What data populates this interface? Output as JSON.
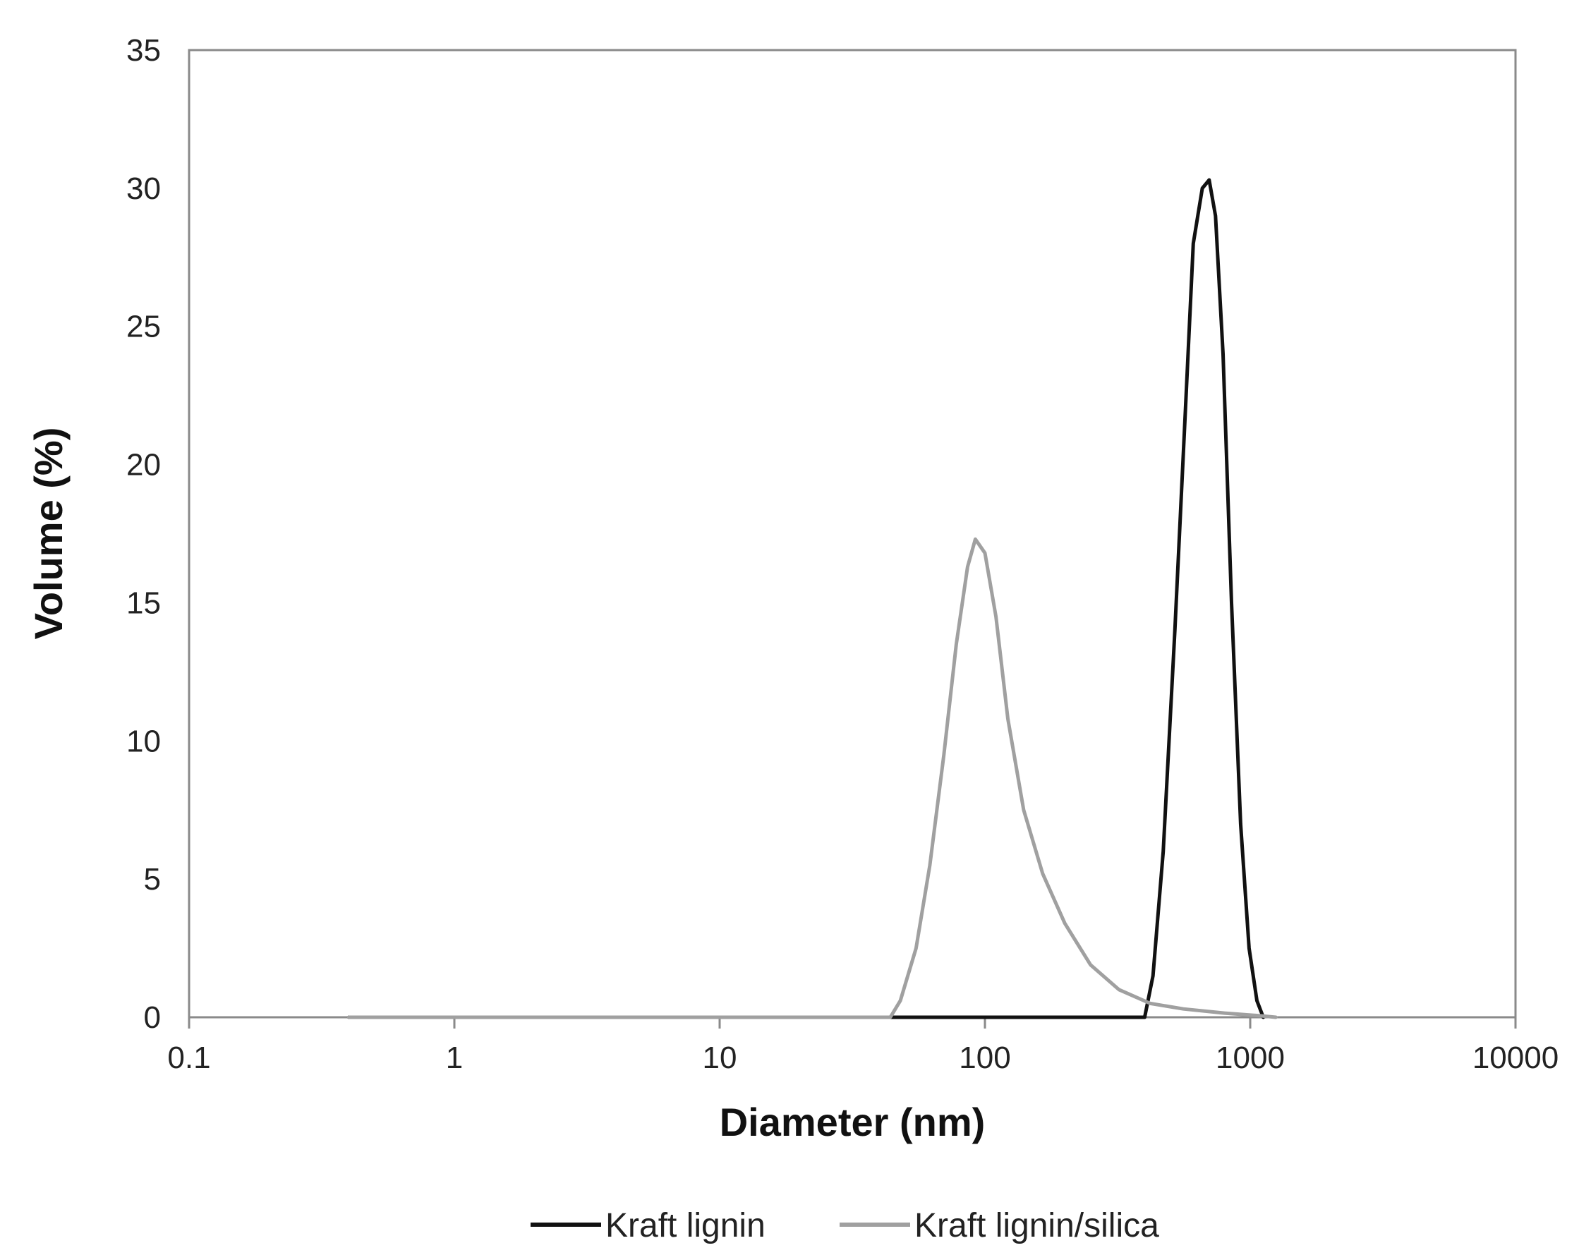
{
  "chart_data": {
    "type": "line",
    "xlabel": "Diameter (nm)",
    "ylabel": "Volume (%)",
    "x_scale": "log",
    "xlim": [
      0.1,
      10000
    ],
    "ylim": [
      0,
      35
    ],
    "x_ticks": [
      "0.1",
      "1",
      "10",
      "100",
      "1000",
      "10000"
    ],
    "y_ticks": [
      "0",
      "5",
      "10",
      "15",
      "20",
      "25",
      "30",
      "35"
    ],
    "grid": false,
    "legend_position": "bottom-center",
    "series": [
      {
        "name": "Kraft lignin",
        "color": "#111111",
        "points": [
          [
            0.4,
            0
          ],
          [
            10,
            0
          ],
          [
            100,
            0
          ],
          [
            360,
            0
          ],
          [
            400,
            0
          ],
          [
            430,
            1.5
          ],
          [
            470,
            6
          ],
          [
            520,
            14
          ],
          [
            570,
            22
          ],
          [
            610,
            28
          ],
          [
            660,
            30
          ],
          [
            700,
            30.3
          ],
          [
            740,
            29
          ],
          [
            790,
            24
          ],
          [
            850,
            15
          ],
          [
            920,
            7
          ],
          [
            990,
            2.5
          ],
          [
            1060,
            0.6
          ],
          [
            1120,
            0
          ]
        ]
      },
      {
        "name": "Kraft lignin/silica",
        "color": "#a0a0a0",
        "points": [
          [
            0.4,
            0
          ],
          [
            10,
            0
          ],
          [
            44,
            0
          ],
          [
            48,
            0.6
          ],
          [
            55,
            2.5
          ],
          [
            62,
            5.5
          ],
          [
            70,
            9.5
          ],
          [
            78,
            13.5
          ],
          [
            86,
            16.3
          ],
          [
            92,
            17.3
          ],
          [
            100,
            16.8
          ],
          [
            110,
            14.5
          ],
          [
            122,
            10.8
          ],
          [
            140,
            7.5
          ],
          [
            165,
            5.2
          ],
          [
            200,
            3.4
          ],
          [
            250,
            1.9
          ],
          [
            320,
            1.0
          ],
          [
            420,
            0.5
          ],
          [
            560,
            0.3
          ],
          [
            800,
            0.15
          ],
          [
            1100,
            0.05
          ],
          [
            1250,
            0
          ]
        ]
      }
    ]
  }
}
